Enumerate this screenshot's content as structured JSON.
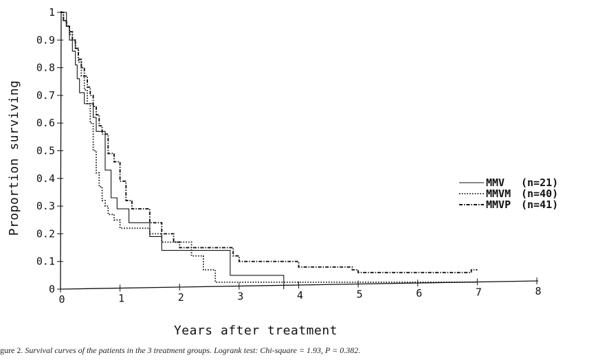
{
  "chart_data": {
    "type": "line",
    "xlabel": "Years after treatment",
    "ylabel": "Proportion surviving",
    "xlim": [
      0,
      8
    ],
    "ylim": [
      0,
      1
    ],
    "x_ticks": [
      "0",
      "1",
      "2",
      "3",
      "4",
      "5",
      "6",
      "7",
      "8"
    ],
    "y_ticks": [
      "0",
      "0.1",
      "0.2",
      "0.3",
      "0.4",
      "0.5",
      "0.6",
      "0.7",
      "0.8",
      "0.9",
      "1"
    ],
    "grid": false,
    "legend_position": "right",
    "series": [
      {
        "name": "MMV",
        "n_label": "(n=21)",
        "style": "solid",
        "x": [
          0,
          0.1,
          0.15,
          0.2,
          0.25,
          0.28,
          0.32,
          0.4,
          0.55,
          0.6,
          0.75,
          0.85,
          0.95,
          1.15,
          1.4,
          1.5,
          1.7,
          2.2,
          2.5,
          2.85,
          3.75
        ],
        "y": [
          1,
          0.95,
          0.9,
          0.86,
          0.81,
          0.76,
          0.71,
          0.67,
          0.62,
          0.57,
          0.43,
          0.33,
          0.29,
          0.24,
          0.24,
          0.19,
          0.14,
          0.14,
          0.14,
          0.05,
          0
        ]
      },
      {
        "name": "MMVM",
        "n_label": "(n=40)",
        "style": "dotted",
        "x": [
          0,
          0.05,
          0.1,
          0.15,
          0.2,
          0.25,
          0.3,
          0.35,
          0.4,
          0.45,
          0.5,
          0.55,
          0.6,
          0.65,
          0.7,
          0.75,
          0.8,
          0.9,
          1.0,
          1.5,
          1.7,
          2.2,
          2.4,
          2.6,
          6.5,
          7.0
        ],
        "y": [
          1,
          0.97,
          0.95,
          0.92,
          0.9,
          0.87,
          0.82,
          0.77,
          0.72,
          0.67,
          0.6,
          0.5,
          0.42,
          0.37,
          0.32,
          0.3,
          0.27,
          0.25,
          0.22,
          0.2,
          0.17,
          0.12,
          0.07,
          0.025,
          0.025,
          0.025
        ]
      },
      {
        "name": "MMVP",
        "n_label": "(n=41)",
        "style": "dashdot",
        "x": [
          0,
          0.05,
          0.1,
          0.15,
          0.2,
          0.25,
          0.3,
          0.35,
          0.4,
          0.45,
          0.5,
          0.55,
          0.6,
          0.65,
          0.7,
          0.8,
          0.9,
          1.0,
          1.1,
          1.2,
          1.5,
          1.7,
          1.9,
          2.0,
          2.2,
          2.9,
          3.0,
          4.0,
          4.9,
          5.0,
          6.9,
          7.0
        ],
        "y": [
          1,
          0.97,
          0.95,
          0.93,
          0.9,
          0.87,
          0.83,
          0.8,
          0.77,
          0.73,
          0.7,
          0.66,
          0.63,
          0.59,
          0.56,
          0.49,
          0.46,
          0.39,
          0.32,
          0.29,
          0.24,
          0.2,
          0.17,
          0.15,
          0.15,
          0.12,
          0.1,
          0.08,
          0.07,
          0.06,
          0.07,
          0.07
        ]
      }
    ]
  },
  "caption": {
    "lead": "gure 2.",
    "text": "Survival curves of the patients in the 3 treatment groups.  Logrank test: Chi-square = 1.93, P = 0.382."
  }
}
